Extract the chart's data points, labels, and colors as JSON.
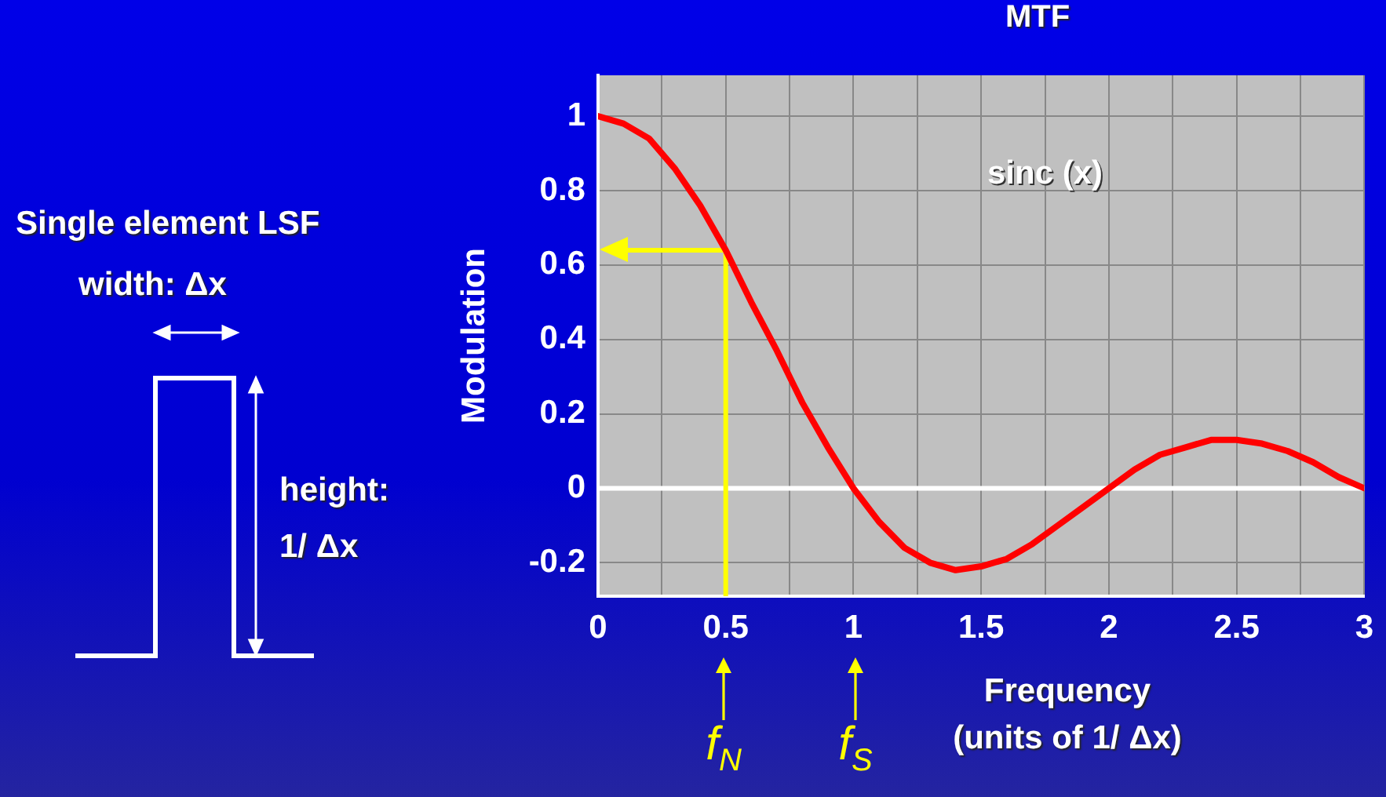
{
  "chart_data": {
    "type": "line",
    "title": "MTF",
    "xlabel": "Frequency\n(units of 1/ Δx)",
    "ylabel": "Modulation",
    "xlim": [
      0,
      3
    ],
    "xticks": [
      0,
      {
        "value": 0.25,
        "label": null
      },
      0.5,
      {
        "value": 0.75,
        "label": null
      },
      1,
      {
        "value": 1.25,
        "label": null
      },
      1.5,
      {
        "value": 1.75,
        "label": null
      },
      2,
      {
        "value": 2.25,
        "label": null
      },
      2.5,
      {
        "value": 2.75,
        "label": null
      },
      3
    ],
    "ylim": [
      -0.29,
      1.11
    ],
    "yticks": [
      -0.2,
      0,
      0.2,
      0.4,
      0.6,
      0.8,
      1
    ],
    "grid": true,
    "legend": false,
    "marker": "none",
    "line_style": "solid",
    "series": [
      {
        "name": "sinc (x)",
        "color": "#ff0000",
        "x": [
          0,
          0.1,
          0.2,
          0.3,
          0.4,
          0.5,
          0.6,
          0.7,
          0.8,
          0.9,
          1,
          1.1,
          1.2,
          1.3,
          1.4,
          1.5,
          1.6,
          1.7,
          1.8,
          1.9,
          2,
          2.1,
          2.2,
          2.3,
          2.4,
          2.5,
          2.6,
          2.7,
          2.8,
          2.9,
          3
        ],
        "values": [
          1,
          0.98,
          0.94,
          0.86,
          0.76,
          0.64,
          0.5,
          0.37,
          0.23,
          0.11,
          0,
          -0.09,
          -0.16,
          -0.2,
          -0.22,
          -0.21,
          -0.19,
          -0.15,
          -0.1,
          -0.05,
          0,
          0.05,
          0.09,
          0.11,
          0.13,
          0.13,
          0.12,
          0.1,
          0.07,
          0.03,
          0
        ]
      }
    ],
    "ref_lines": [
      {
        "axis": "y",
        "value": 0,
        "color": "#ffffff"
      },
      {
        "axis": "x",
        "value": 0.5,
        "color": "#ffff00"
      },
      {
        "axis": "y",
        "value": 0.64,
        "color": "#ffff00"
      }
    ],
    "annotations": [
      "Single element LSF",
      "width: Δx",
      "height:\n1/ Δx",
      "f$_{N}$",
      "f$_{S}$"
    ]
  }
}
